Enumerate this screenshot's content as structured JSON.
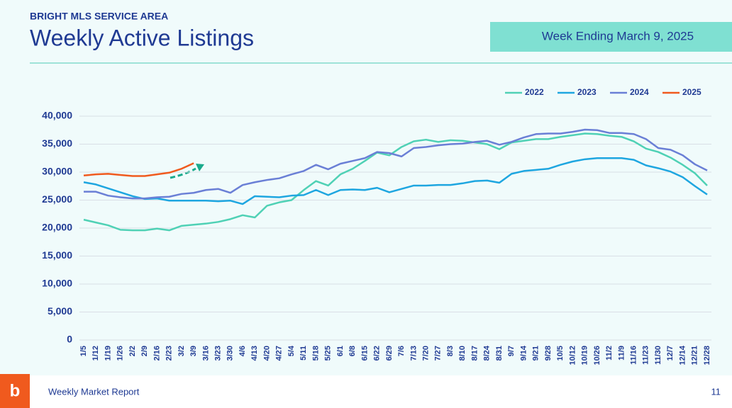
{
  "header": {
    "kicker": "BRIGHT MLS SERVICE AREA",
    "title": "Weekly Active Listings",
    "badge": "Week Ending March 9, 2025"
  },
  "footer": {
    "text": "Weekly Market Report",
    "page": "11",
    "logo": "b"
  },
  "chart_data": {
    "type": "line",
    "categories": [
      "1/5",
      "1/12",
      "1/19",
      "1/26",
      "2/2",
      "2/9",
      "2/16",
      "2/23",
      "3/2",
      "3/9",
      "3/16",
      "3/23",
      "3/30",
      "4/6",
      "4/13",
      "4/20",
      "4/27",
      "5/4",
      "5/11",
      "5/18",
      "5/25",
      "6/1",
      "6/8",
      "6/15",
      "6/22",
      "6/29",
      "7/6",
      "7/13",
      "7/20",
      "7/27",
      "8/3",
      "8/10",
      "8/17",
      "8/24",
      "8/31",
      "9/7",
      "9/14",
      "9/21",
      "9/28",
      "10/5",
      "10/12",
      "10/19",
      "10/26",
      "11/2",
      "11/9",
      "11/16",
      "11/23",
      "11/30",
      "12/7",
      "12/14",
      "12/21",
      "12/28"
    ],
    "series": [
      {
        "name": "2022",
        "color": "#4fd1b5",
        "values": [
          21500,
          21000,
          20500,
          19700,
          19600,
          19600,
          19900,
          19600,
          20400,
          20600,
          20800,
          21100,
          21600,
          22300,
          21900,
          24000,
          24600,
          25000,
          26800,
          28400,
          27600,
          29600,
          30600,
          32000,
          33500,
          33000,
          34500,
          35500,
          35800,
          35400,
          35700,
          35600,
          35300,
          35000,
          34100,
          35300,
          35600,
          35900,
          35900,
          36300,
          36600,
          36900,
          36800,
          36500,
          36300,
          35500,
          34200,
          33600,
          32600,
          31300,
          29800,
          27600
        ]
      },
      {
        "name": "2023",
        "color": "#1ea6e0",
        "values": [
          28200,
          27800,
          27100,
          26400,
          25700,
          25200,
          25300,
          24900,
          24900,
          24900,
          24900,
          24800,
          24900,
          24300,
          25700,
          25600,
          25500,
          25800,
          25900,
          26800,
          25900,
          26800,
          26900,
          26800,
          27200,
          26400,
          27000,
          27600,
          27600,
          27700,
          27700,
          28000,
          28400,
          28500,
          28100,
          29700,
          30200,
          30400,
          30600,
          31300,
          31900,
          32300,
          32500,
          32500,
          32500,
          32200,
          31200,
          30700,
          30100,
          29100,
          27500,
          26000
        ]
      },
      {
        "name": "2024",
        "color": "#6a7fd6",
        "values": [
          26500,
          26500,
          25800,
          25500,
          25300,
          25300,
          25500,
          25600,
          26100,
          26300,
          26800,
          27000,
          26300,
          27700,
          28200,
          28600,
          28900,
          29600,
          30200,
          31300,
          30500,
          31500,
          32000,
          32500,
          33600,
          33400,
          32800,
          34300,
          34500,
          34800,
          35000,
          35100,
          35400,
          35600,
          34900,
          35400,
          36200,
          36800,
          36900,
          36900,
          37200,
          37600,
          37500,
          37000,
          37000,
          36800,
          35900,
          34300,
          34000,
          33000,
          31400,
          30300
        ]
      },
      {
        "name": "2025",
        "color": "#f05a1e",
        "values": [
          29400,
          29600,
          29700,
          29500,
          29300,
          29300,
          29600,
          29900,
          30600,
          31600,
          null,
          null,
          null,
          null,
          null,
          null,
          null,
          null,
          null,
          null,
          null,
          null,
          null,
          null,
          null,
          null,
          null,
          null,
          null,
          null,
          null,
          null,
          null,
          null,
          null,
          null,
          null,
          null,
          null,
          null,
          null,
          null,
          null,
          null,
          null,
          null,
          null,
          null,
          null,
          null,
          null,
          null
        ]
      }
    ],
    "ylim": [
      0,
      40000
    ],
    "yticks": [
      0,
      {
        "value": 5000,
        "label": "5,000"
      },
      {
        "value": 10000,
        "label": "10,000"
      },
      {
        "value": 15000,
        "label": "15,000"
      },
      {
        "value": 20000,
        "label": "20,000"
      },
      {
        "value": 25000,
        "label": "25,000"
      },
      {
        "value": 30000,
        "label": "30,000"
      },
      {
        "value": 35000,
        "label": "35,000"
      },
      {
        "value": 40000,
        "label": "40,000"
      }
    ],
    "grid": true,
    "legend": "top-right"
  }
}
